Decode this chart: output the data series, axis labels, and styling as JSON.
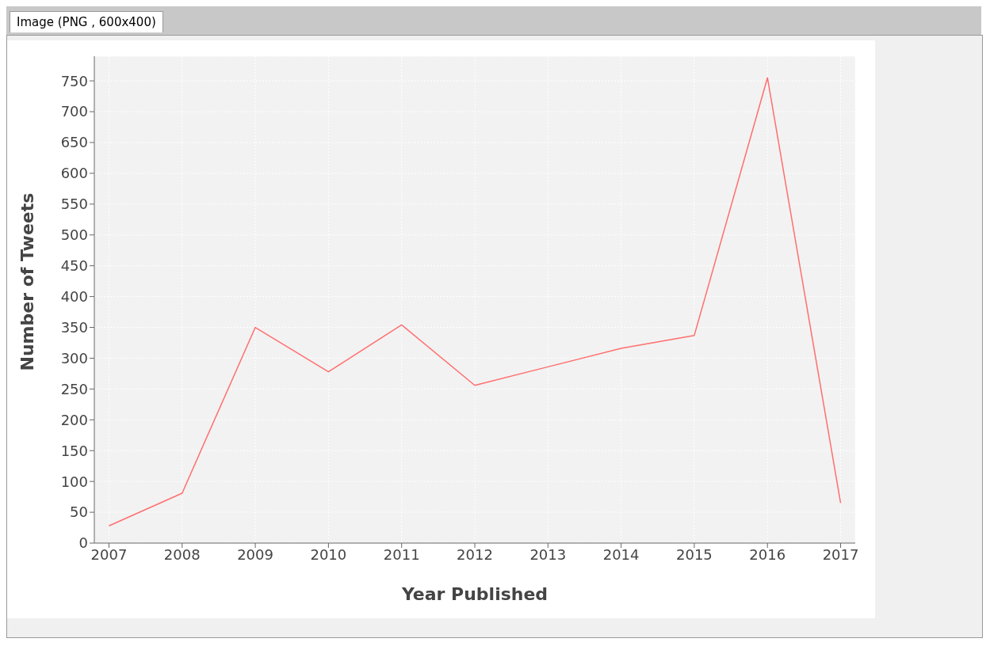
{
  "chart_data": {
    "type": "line",
    "xlabel": "Year Published",
    "ylabel": "Number of Tweets",
    "annotations": [
      "Image (PNG , 600x400)"
    ],
    "x": [
      2007,
      2008,
      2009,
      2010,
      2011,
      2012,
      2013,
      2014,
      2015,
      2016,
      2017
    ],
    "series": [
      {
        "color": "#ff6e6e",
        "values": [
          28,
          81,
          350,
          278,
          354,
          256,
          286,
          316,
          337,
          755,
          65
        ]
      }
    ],
    "xlim": [
      2006.8,
      2017.2
    ],
    "xticks": [
      2007,
      2008,
      2009,
      2010,
      2011,
      2012,
      2013,
      2014,
      2015,
      2016,
      2017
    ],
    "ylim": [
      0,
      790
    ],
    "yticks": [
      0,
      50,
      100,
      150,
      200,
      250,
      300,
      350,
      400,
      450,
      500,
      550,
      600,
      650,
      700,
      750
    ],
    "grid": true,
    "legend": false,
    "marker": "none",
    "line_style": "solid"
  }
}
